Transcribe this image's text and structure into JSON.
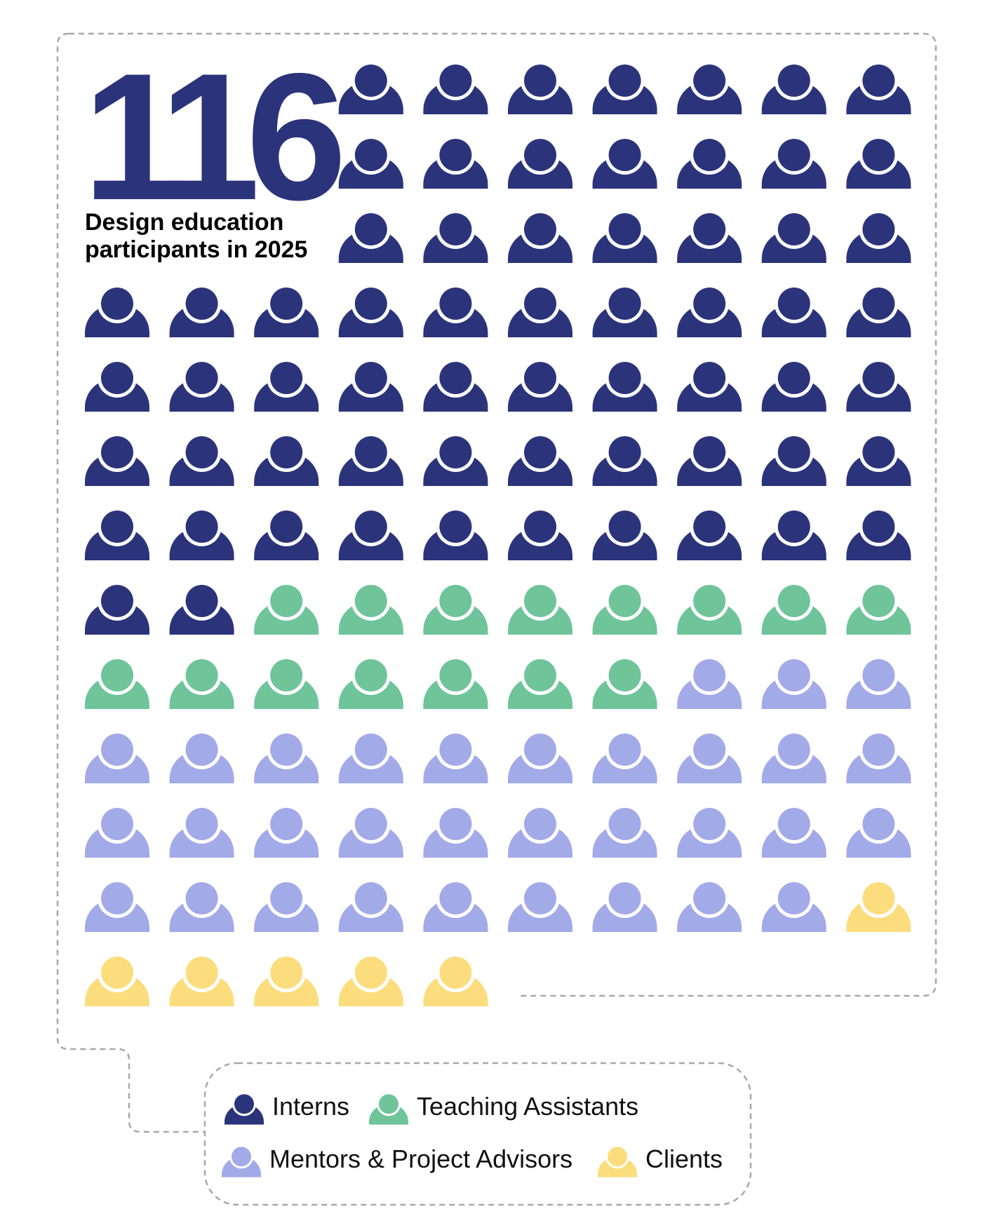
{
  "headline": {
    "value": "116",
    "subtitle": "Design education participants in 2025"
  },
  "chart_data": {
    "type": "pictogram",
    "total": 116,
    "series": [
      {
        "name": "Interns",
        "value": 63,
        "color": "#2b347a"
      },
      {
        "name": "Teaching Assistants",
        "value": 15,
        "color": "#6fc49a"
      },
      {
        "name": "Mentors & Project Advisors",
        "value": 32,
        "color": "#a3aae8"
      },
      {
        "name": "Clients",
        "value": 6,
        "color": "#fcdd7e"
      }
    ],
    "icon": "person-icon",
    "legend_position": "bottom"
  }
}
